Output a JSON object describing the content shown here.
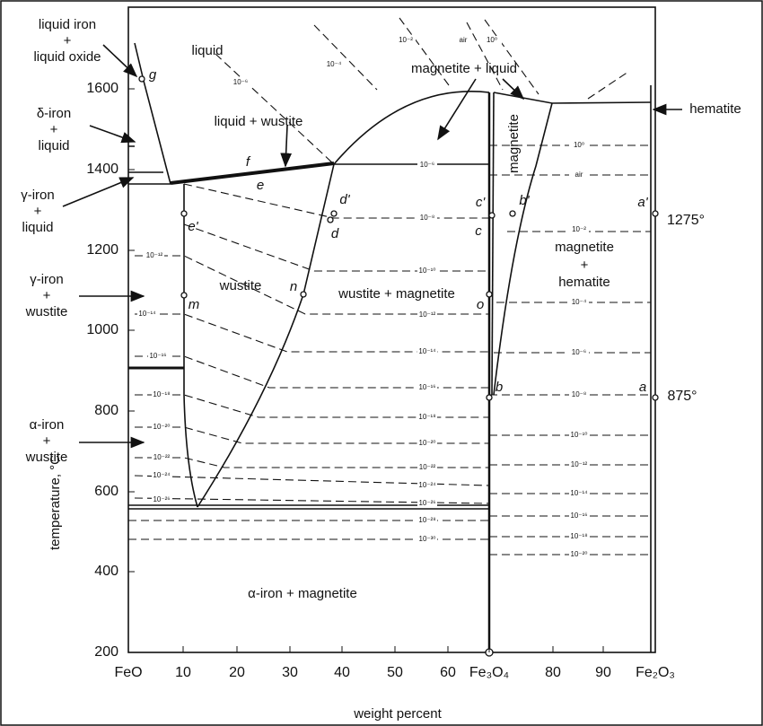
{
  "axis": {
    "y_label": "temperature, °C",
    "x_label": "weight percent",
    "y_ticks": [
      "1600",
      "1400",
      "1200",
      "1000",
      "800",
      "600",
      "400",
      "200"
    ],
    "x_ticks": [
      "FeO",
      "10",
      "20",
      "30",
      "40",
      "50",
      "60",
      "Fe₃O₄",
      "80",
      "90",
      "Fe₂O₃"
    ]
  },
  "annotations": [
    {
      "lines": [
        "liquid iron",
        "+",
        "liquid oxide"
      ]
    },
    {
      "lines": [
        "δ-iron",
        "+",
        "liquid"
      ]
    },
    {
      "lines": [
        "γ-iron",
        "+",
        "liquid"
      ]
    },
    {
      "lines": [
        "γ-iron",
        "+",
        "wustite"
      ]
    },
    {
      "lines": [
        "α-iron",
        "+",
        "wustite"
      ]
    },
    {
      "lines": [
        "hematite"
      ]
    }
  ],
  "regions": [
    "liquid",
    "liquid + wustite",
    "magnetite + liquid",
    "magnetite",
    "wustite",
    "wustite + magnetite",
    "magnetite",
    "+",
    "hematite",
    "α-iron + magnetite"
  ],
  "points": [
    "g",
    "f",
    "e",
    "d'",
    "d",
    "e'",
    "n",
    "m",
    "c'",
    "c",
    "b'",
    "a'",
    "o",
    "b",
    "a"
  ],
  "temperatures": [
    "1275°",
    "875°"
  ],
  "pressures": [
    "10⁻²",
    "air",
    "10⁰",
    "10⁻⁴",
    "10⁻⁶",
    "10⁻⁶",
    "10⁻⁸",
    "10⁻¹⁰",
    "10⁻¹²",
    "10⁻¹⁴",
    "10⁻¹⁶",
    "10⁻¹⁸",
    "10⁻²⁰",
    "10⁻²²",
    "10⁻²⁴",
    "10⁻²⁶",
    "10⁻²⁸",
    "10⁻³⁰",
    "10⁻¹²",
    "10⁻¹⁴",
    "10⁻¹⁶",
    "10⁻¹⁸",
    "10⁻²⁰",
    "10⁻²²",
    "10⁻²⁴",
    "10⁻²⁶",
    "10⁰",
    "air",
    "10⁻²",
    "10⁻⁴",
    "10⁻⁶",
    "10⁻⁸",
    "10⁻¹⁰",
    "10⁻¹²",
    "10⁻¹⁴",
    "10⁻¹⁶",
    "10⁻¹⁸",
    "10⁻²⁰"
  ]
}
